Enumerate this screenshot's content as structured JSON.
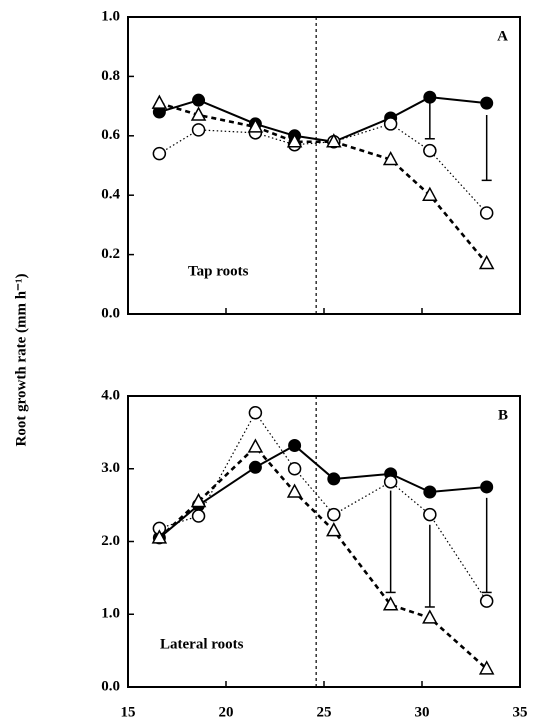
{
  "y_label": "Root growth rate (mm h⁻¹)",
  "chart_data": [
    {
      "type": "line",
      "panel_label": "A",
      "annotation": "Tap roots",
      "x": [
        16.6,
        18.6,
        21.5,
        23.5,
        25.5,
        28.4,
        30.4,
        33.3
      ],
      "series": [
        {
          "marker": "filled-circle",
          "line": "solid",
          "color": "#000000",
          "values": [
            0.68,
            0.72,
            0.64,
            0.6,
            0.58,
            0.66,
            0.73,
            0.71
          ]
        },
        {
          "marker": "open-circle",
          "line": "dotted",
          "color": "#000000",
          "values": [
            0.54,
            0.62,
            0.61,
            0.57,
            0.58,
            0.64,
            0.55,
            0.34
          ]
        },
        {
          "marker": "triangle",
          "line": "dashed",
          "color": "#000000",
          "values": [
            0.71,
            0.67,
            0.63,
            0.58,
            0.58,
            0.52,
            0.4,
            0.17
          ]
        }
      ],
      "error_bars": [
        {
          "x": 30.4,
          "low": 0.59,
          "high": 0.73
        },
        {
          "x": 33.3,
          "low": 0.45,
          "high": 0.67
        }
      ],
      "vline": 24.6,
      "xlim": [
        15,
        35
      ],
      "xticks": [
        15,
        20,
        25,
        30,
        35
      ],
      "show_xtick_labels": false,
      "ylim": [
        0,
        1
      ],
      "yticks": [
        {
          "value": 0,
          "label": "0.0"
        },
        0.2,
        0.4,
        0.6,
        0.8,
        {
          "value": 1,
          "label": "1.0"
        }
      ]
    },
    {
      "type": "line",
      "panel_label": "B",
      "annotation": "Lateral roots",
      "x": [
        16.6,
        18.6,
        21.5,
        23.5,
        25.5,
        28.4,
        30.4,
        33.3
      ],
      "series": [
        {
          "marker": "filled-circle",
          "line": "solid",
          "color": "#000000",
          "values": [
            2.05,
            2.5,
            3.02,
            3.32,
            2.86,
            2.93,
            2.68,
            2.75
          ]
        },
        {
          "marker": "open-circle",
          "line": "dotted",
          "color": "#000000",
          "values": [
            2.18,
            2.35,
            3.77,
            3.0,
            2.37,
            2.82,
            2.37,
            1.18
          ]
        },
        {
          "marker": "triangle",
          "line": "dashed",
          "color": "#000000",
          "values": [
            2.05,
            2.55,
            3.3,
            2.68,
            2.15,
            1.13,
            0.95,
            0.25
          ]
        }
      ],
      "error_bars": [
        {
          "x": 28.4,
          "low": 1.3,
          "high": 2.7
        },
        {
          "x": 30.4,
          "low": 1.1,
          "high": 2.23
        },
        {
          "x": 33.3,
          "low": 1.3,
          "high": 2.6
        }
      ],
      "vline": 24.6,
      "xlim": [
        15,
        35
      ],
      "xticks": [
        15,
        20,
        25,
        30,
        35
      ],
      "show_xtick_labels": true,
      "ylim": [
        0,
        4
      ],
      "yticks": [
        {
          "value": 0,
          "label": "0.0"
        },
        {
          "value": 1,
          "label": "1.0"
        },
        {
          "value": 2,
          "label": "2.0"
        },
        {
          "value": 3,
          "label": "3.0"
        },
        {
          "value": 4,
          "label": "4.0"
        }
      ]
    }
  ]
}
